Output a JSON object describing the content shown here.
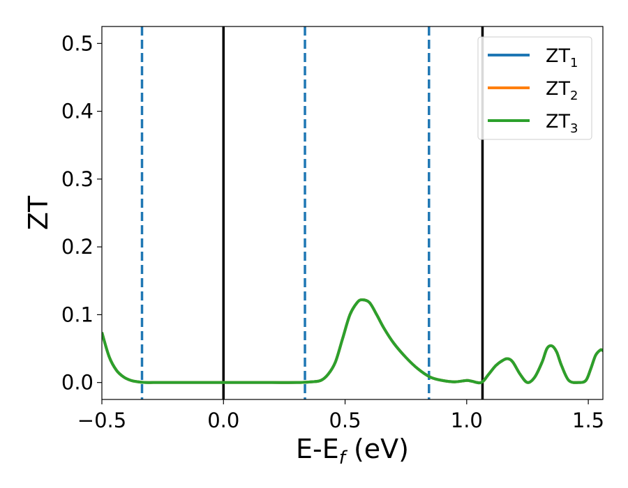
{
  "chart_data": {
    "type": "line",
    "xlabel": "E-E",
    "xlabel_sub": "f",
    "xlabel_unit": " (eV)",
    "ylabel": "ZT",
    "xlim": [
      -0.5,
      1.56
    ],
    "ylim": [
      -0.025,
      0.525
    ],
    "x_ticks": [
      -0.5,
      0.0,
      0.5,
      1.0,
      1.5
    ],
    "x_tick_labels": [
      "−0.5",
      "0.0",
      "0.5",
      "1.0",
      "1.5"
    ],
    "y_ticks": [
      0.0,
      0.1,
      0.2,
      0.3,
      0.4,
      0.5
    ],
    "y_tick_labels": [
      "0.0",
      "0.1",
      "0.2",
      "0.3",
      "0.4",
      "0.5"
    ],
    "grid": false,
    "legend_position": "top-right",
    "colors": {
      "ZT1": "#1f77b4",
      "ZT2": "#ff7f0e",
      "ZT3": "#2ca02c",
      "vline_solid": "#000000",
      "vline_dashed": "#1f77b4"
    },
    "vlines_solid": [
      0.0,
      1.065
    ],
    "vlines_dashed": [
      -0.335,
      0.335,
      0.845
    ],
    "series": [
      {
        "name": "ZT",
        "sub": "1",
        "color": "#1f77b4",
        "x": [
          -0.5,
          -0.47,
          -0.44,
          -0.41,
          -0.38,
          -0.35,
          -0.32,
          -0.29,
          -0.25,
          -0.2,
          -0.1,
          0.0,
          0.1,
          0.2,
          0.3,
          0.36,
          0.4,
          0.43,
          0.46,
          0.49,
          0.52,
          0.55,
          0.57,
          0.6,
          0.63,
          0.66,
          0.7,
          0.75,
          0.8,
          0.85,
          0.9,
          0.95,
          1.0,
          1.02,
          1.06,
          1.09,
          1.12,
          1.15,
          1.17,
          1.19,
          1.22,
          1.25,
          1.28,
          1.31,
          1.33,
          1.35,
          1.37,
          1.39,
          1.42,
          1.46,
          1.49,
          1.51,
          1.53,
          1.55,
          1.56
        ],
        "y": [
          0.074,
          0.038,
          0.018,
          0.008,
          0.003,
          0.001,
          0.0,
          0.0,
          0.0,
          0.0,
          0.0,
          0.0,
          0.0,
          0.0,
          0.0,
          0.001,
          0.003,
          0.012,
          0.03,
          0.065,
          0.1,
          0.118,
          0.122,
          0.118,
          0.1,
          0.08,
          0.058,
          0.037,
          0.02,
          0.008,
          0.003,
          0.001,
          0.003,
          0.002,
          0.0,
          0.012,
          0.025,
          0.033,
          0.035,
          0.03,
          0.012,
          0.0,
          0.008,
          0.03,
          0.05,
          0.054,
          0.045,
          0.025,
          0.003,
          0.0,
          0.003,
          0.02,
          0.04,
          0.048,
          0.047
        ]
      },
      {
        "name": "ZT",
        "sub": "2",
        "color": "#ff7f0e",
        "x": [
          -0.5,
          -0.47,
          -0.44,
          -0.41,
          -0.38,
          -0.35,
          -0.32,
          -0.29,
          -0.25,
          -0.2,
          -0.1,
          0.0,
          0.1,
          0.2,
          0.3,
          0.36,
          0.4,
          0.43,
          0.46,
          0.49,
          0.52,
          0.55,
          0.57,
          0.6,
          0.63,
          0.66,
          0.7,
          0.75,
          0.8,
          0.85,
          0.9,
          0.95,
          1.0,
          1.02,
          1.06,
          1.09,
          1.12,
          1.15,
          1.17,
          1.19,
          1.22,
          1.25,
          1.28,
          1.31,
          1.33,
          1.35,
          1.37,
          1.39,
          1.42,
          1.46,
          1.49,
          1.51,
          1.53,
          1.55,
          1.56
        ],
        "y": [
          0.074,
          0.038,
          0.018,
          0.008,
          0.003,
          0.001,
          0.0,
          0.0,
          0.0,
          0.0,
          0.0,
          0.0,
          0.0,
          0.0,
          0.0,
          0.001,
          0.003,
          0.012,
          0.03,
          0.065,
          0.1,
          0.118,
          0.122,
          0.118,
          0.1,
          0.08,
          0.058,
          0.037,
          0.02,
          0.008,
          0.003,
          0.001,
          0.003,
          0.002,
          0.0,
          0.012,
          0.025,
          0.033,
          0.035,
          0.03,
          0.012,
          0.0,
          0.008,
          0.03,
          0.05,
          0.054,
          0.045,
          0.025,
          0.003,
          0.0,
          0.003,
          0.02,
          0.04,
          0.048,
          0.047
        ]
      },
      {
        "name": "ZT",
        "sub": "3",
        "color": "#2ca02c",
        "x": [
          -0.5,
          -0.47,
          -0.44,
          -0.41,
          -0.38,
          -0.35,
          -0.32,
          -0.29,
          -0.25,
          -0.2,
          -0.1,
          0.0,
          0.1,
          0.2,
          0.3,
          0.36,
          0.4,
          0.43,
          0.46,
          0.49,
          0.52,
          0.55,
          0.57,
          0.6,
          0.63,
          0.66,
          0.7,
          0.75,
          0.8,
          0.85,
          0.9,
          0.95,
          1.0,
          1.02,
          1.06,
          1.09,
          1.12,
          1.15,
          1.17,
          1.19,
          1.22,
          1.25,
          1.28,
          1.31,
          1.33,
          1.35,
          1.37,
          1.39,
          1.42,
          1.46,
          1.49,
          1.51,
          1.53,
          1.55,
          1.56
        ],
        "y": [
          0.074,
          0.038,
          0.018,
          0.008,
          0.003,
          0.001,
          0.0,
          0.0,
          0.0,
          0.0,
          0.0,
          0.0,
          0.0,
          0.0,
          0.0,
          0.001,
          0.003,
          0.012,
          0.03,
          0.065,
          0.1,
          0.118,
          0.122,
          0.118,
          0.1,
          0.08,
          0.058,
          0.037,
          0.02,
          0.008,
          0.003,
          0.001,
          0.003,
          0.002,
          0.0,
          0.012,
          0.025,
          0.033,
          0.035,
          0.03,
          0.012,
          0.0,
          0.008,
          0.03,
          0.05,
          0.054,
          0.045,
          0.025,
          0.003,
          0.0,
          0.003,
          0.02,
          0.04,
          0.048,
          0.047
        ]
      }
    ]
  }
}
